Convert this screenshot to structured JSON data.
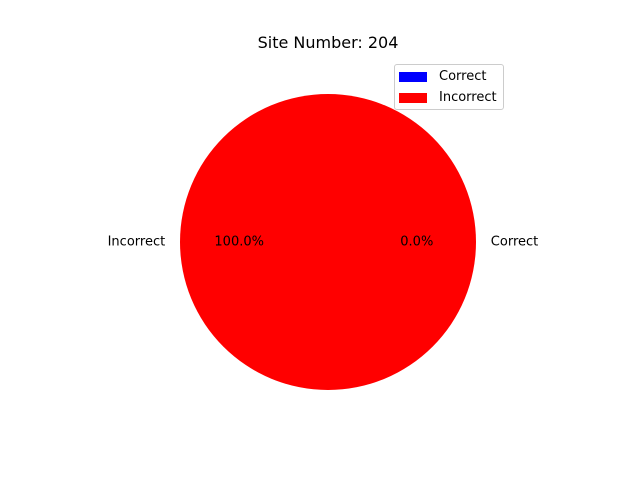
{
  "chart_data": {
    "type": "pie",
    "title": "Site Number: 204",
    "categories": [
      "Correct",
      "Incorrect"
    ],
    "values": [
      0.0,
      100.0
    ],
    "slice_labels": [
      "Correct",
      "Incorrect"
    ],
    "autopct_labels": [
      "0.0%",
      "100.0%"
    ],
    "colors": [
      "#0000ff",
      "#ff0000"
    ],
    "legend": {
      "position": "upper-right",
      "entries": [
        "Correct",
        "Incorrect"
      ]
    }
  }
}
